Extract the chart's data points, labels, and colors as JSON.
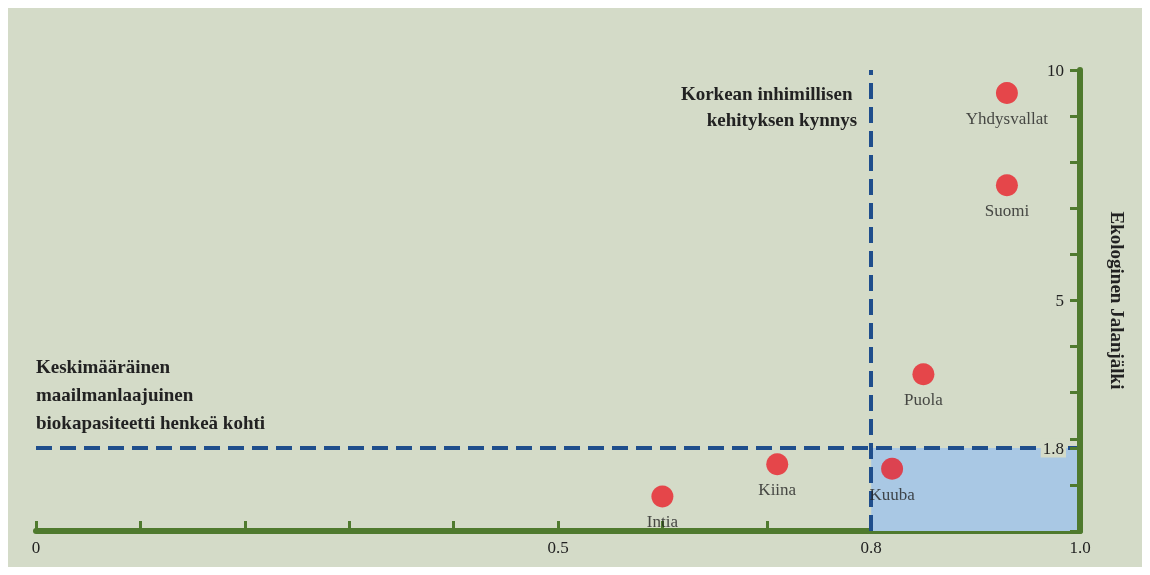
{
  "chart_data": {
    "type": "scatter",
    "ylabel": "Ekologinen Jalanjälki",
    "marker": "circle",
    "legend": false,
    "grid": false,
    "xlim": [
      0,
      1
    ],
    "xticks": [
      0,
      {
        "value": 0.1,
        "label": null
      },
      {
        "value": 0.2,
        "label": null
      },
      {
        "value": 0.3,
        "label": null
      },
      {
        "value": 0.4,
        "label": null
      },
      0.5,
      {
        "value": 0.6,
        "label": null
      },
      {
        "value": 0.7,
        "label": null
      },
      0.8,
      {
        "value": 0.9,
        "label": null
      },
      {
        "value": 1,
        "label": "1.0"
      }
    ],
    "ylim": [
      0,
      10
    ],
    "yticks": [
      {
        "value": 0,
        "label": null
      },
      {
        "value": 1,
        "label": null
      },
      1.8,
      {
        "value": 2,
        "label": null
      },
      {
        "value": 3,
        "label": null
      },
      {
        "value": 4,
        "label": null
      },
      5,
      {
        "value": 6,
        "label": null
      },
      {
        "value": 7,
        "label": null
      },
      {
        "value": 8,
        "label": null
      },
      {
        "value": 9,
        "label": null
      },
      10
    ],
    "series": [
      {
        "name": "Yhdysvallat",
        "color": "#e8202a",
        "x": [
          0.93
        ],
        "values": [
          9.5
        ]
      },
      {
        "name": "Suomi",
        "color": "#e8202a",
        "x": [
          0.93
        ],
        "values": [
          7.5
        ]
      },
      {
        "name": "Puola",
        "color": "#e8202a",
        "x": [
          0.85
        ],
        "values": [
          3.4
        ]
      },
      {
        "name": "Kuuba",
        "color": "#e8202a",
        "x": [
          0.82
        ],
        "values": [
          1.35
        ]
      },
      {
        "name": "Kiina",
        "color": "#e8202a",
        "x": [
          0.71
        ],
        "values": [
          1.45
        ]
      },
      {
        "name": "Intia",
        "color": "#e8202a",
        "x": [
          0.6
        ],
        "values": [
          0.75
        ]
      }
    ],
    "ref_lines": [
      {
        "axis": "x",
        "value": 0.8,
        "label": "Korkean inhimillisen kehityksen kynnys",
        "color": "#1f4e8c",
        "line_style": "dashed"
      },
      {
        "axis": "y",
        "value": 1.8,
        "label": "Keskimääräinen maailmanlaajuinen biokapasiteetti henkeä kohti",
        "color": "#1f4e8c",
        "line_style": "dashed"
      }
    ],
    "bands": [
      {
        "axis": "x",
        "from": 0.8,
        "to": 1,
        "color": "#a9c8e4"
      }
    ]
  }
}
